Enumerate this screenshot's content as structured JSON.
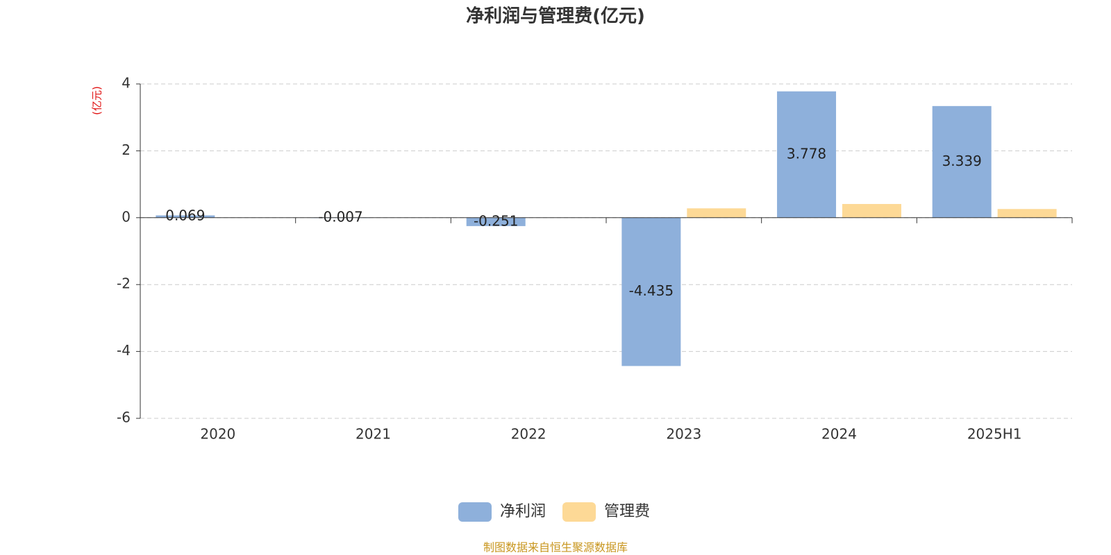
{
  "chart_data": {
    "type": "bar",
    "title": "净利润与管理费(亿元)",
    "y_label": "(亿元)",
    "categories": [
      "2020",
      "2021",
      "2022",
      "2023",
      "2024",
      "2025H1"
    ],
    "series": [
      {
        "name": "净利润",
        "color": "#8eb0db",
        "values": [
          0.069,
          -0.007,
          -0.251,
          -4.435,
          3.778,
          3.339
        ],
        "show_labels": true
      },
      {
        "name": "管理费",
        "color": "#fdd996",
        "values": [
          null,
          null,
          null,
          0.28,
          0.41,
          0.26
        ],
        "show_labels": false
      }
    ],
    "ylim": [
      -6,
      4
    ],
    "yticks": [
      -6,
      -4,
      -2,
      0,
      2,
      4
    ],
    "grid": true,
    "legend": "bottom",
    "source": "制图数据来自恒生聚源数据库"
  }
}
